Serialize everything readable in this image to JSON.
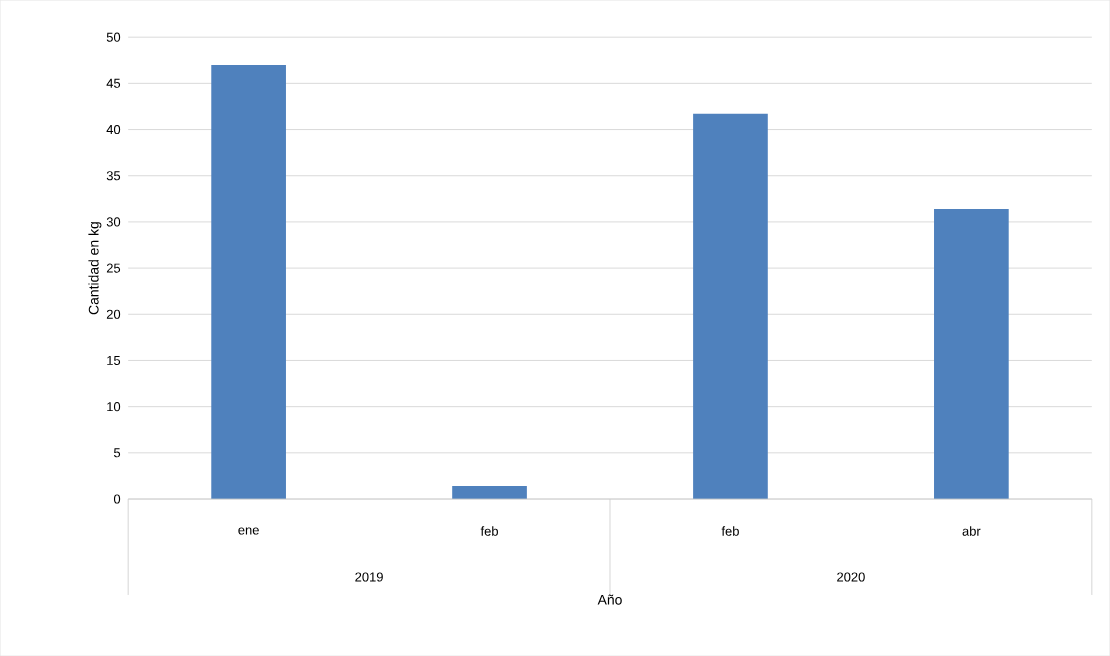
{
  "chart_data": {
    "type": "bar",
    "xlabel": "Año",
    "ylabel": "Cantidad en kg",
    "categories": [
      "ene",
      "feb",
      "feb",
      "abr"
    ],
    "values": [
      47.0,
      1.4,
      41.7,
      31.4
    ],
    "color": "#4f81bd",
    "ylim": [
      0,
      50
    ],
    "yticks": [
      0,
      5,
      10,
      15,
      20,
      25,
      30,
      35,
      40,
      45,
      50
    ],
    "grid": "y",
    "annotations": [
      "2019",
      "2020"
    ]
  }
}
